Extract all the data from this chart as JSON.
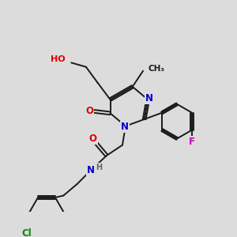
{
  "bg_color": "#dcdcdc",
  "bond_color": "#1a1a1a",
  "atom_colors": {
    "O": "#dd0000",
    "N": "#0000cc",
    "F": "#cc00bb",
    "Cl": "#008800",
    "H": "#666666",
    "C": "#1a1a1a"
  },
  "font_size": 8.0,
  "fig_size": [
    3.0,
    3.0
  ],
  "dpi": 100,
  "lw": 1.4
}
